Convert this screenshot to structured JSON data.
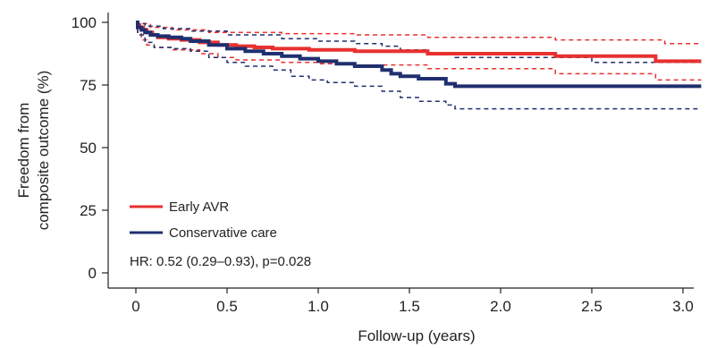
{
  "chart_data": {
    "type": "line",
    "xlabel": "Follow-up (years)",
    "ylabel_lines": [
      "Freedom from",
      "composite outcome (%)"
    ],
    "xlim": [
      0,
      3.1
    ],
    "ylim": [
      0,
      100
    ],
    "x_ticks": [
      "0",
      "0.5",
      "1.0",
      "1.5",
      "2.0",
      "2.5",
      "3.0"
    ],
    "x_tick_values": [
      0,
      0.5,
      1.0,
      1.5,
      2.0,
      2.5,
      3.0
    ],
    "y_ticks": [
      "0",
      "25",
      "50",
      "75",
      "100"
    ],
    "y_tick_values": [
      0,
      25,
      50,
      75,
      100
    ],
    "grid": false,
    "legend_position": "bottom-left",
    "annotation": "HR: 0.52 (0.29–0.93), p=0.028",
    "series": [
      {
        "name": "Early AVR",
        "color": "#e8312f",
        "x": [
          0,
          0.01,
          0.02,
          0.04,
          0.06,
          0.09,
          0.12,
          0.18,
          0.25,
          0.35,
          0.45,
          0.55,
          0.65,
          0.75,
          0.95,
          1.2,
          1.4,
          1.6,
          2.3,
          2.85,
          3.1
        ],
        "y": [
          100,
          99,
          98,
          97,
          96,
          95,
          94,
          93.5,
          93,
          92,
          91,
          90.5,
          90,
          89.5,
          89,
          88.5,
          88.5,
          87.5,
          86.5,
          84.5,
          84.5
        ]
      },
      {
        "name": "Conservative care",
        "color": "#1f2f6f",
        "x": [
          0,
          0.01,
          0.03,
          0.05,
          0.08,
          0.12,
          0.18,
          0.25,
          0.3,
          0.4,
          0.5,
          0.6,
          0.7,
          0.8,
          0.9,
          1.0,
          1.1,
          1.2,
          1.35,
          1.4,
          1.45,
          1.55,
          1.7,
          1.75,
          3.1
        ],
        "y": [
          100,
          98,
          97,
          96,
          95,
          94.5,
          94,
          93.5,
          92.5,
          91,
          89.5,
          88.5,
          87.5,
          86.5,
          85.5,
          84.5,
          83.5,
          82.5,
          81,
          79.5,
          78.5,
          77.5,
          75.5,
          74.5,
          74.5
        ]
      },
      {
        "name": "",
        "band_of": "Early AVR",
        "bound": "upper",
        "color": "#e8312f",
        "x": [
          0,
          0.01,
          0.08,
          0.2,
          0.4,
          0.8,
          1.2,
          1.6,
          2.3,
          2.9,
          3.1
        ],
        "y": [
          100,
          99.5,
          98,
          97,
          96,
          95.5,
          95,
          94,
          93,
          91.5,
          91.5
        ]
      },
      {
        "name": "",
        "band_of": "Early AVR",
        "bound": "lower",
        "color": "#e8312f",
        "x": [
          0,
          0.01,
          0.03,
          0.06,
          0.1,
          0.2,
          0.35,
          0.45,
          0.55,
          0.8,
          1.0,
          1.2,
          1.6,
          2.3,
          2.85,
          3.1
        ],
        "y": [
          100,
          96,
          93,
          91,
          90,
          89,
          87.5,
          86,
          85,
          84,
          83.5,
          83,
          81.5,
          79.5,
          77,
          77
        ]
      },
      {
        "name": "",
        "band_of": "Conservative care",
        "bound": "upper",
        "color": "#1f2f6f",
        "x": [
          0,
          0.01,
          0.05,
          0.15,
          0.3,
          0.5,
          0.8,
          1.0,
          1.2,
          1.35,
          1.45,
          1.6,
          1.75,
          2.5,
          3.1
        ],
        "y": [
          100,
          99.5,
          98.5,
          97.5,
          96.5,
          95,
          93.5,
          92.5,
          91.5,
          90.5,
          89,
          87.5,
          86,
          84,
          84
        ]
      },
      {
        "name": "",
        "band_of": "Conservative care",
        "bound": "lower",
        "color": "#1f2f6f",
        "x": [
          0,
          0.01,
          0.05,
          0.1,
          0.2,
          0.3,
          0.4,
          0.5,
          0.6,
          0.75,
          0.85,
          0.95,
          1.05,
          1.2,
          1.35,
          1.45,
          1.55,
          1.7,
          1.75,
          3.1
        ],
        "y": [
          100,
          95,
          92,
          90,
          89.5,
          88.5,
          86,
          84,
          82.5,
          81,
          78.5,
          77,
          76,
          74.5,
          72.5,
          70,
          68.5,
          67,
          65.5,
          65.5
        ]
      }
    ]
  }
}
